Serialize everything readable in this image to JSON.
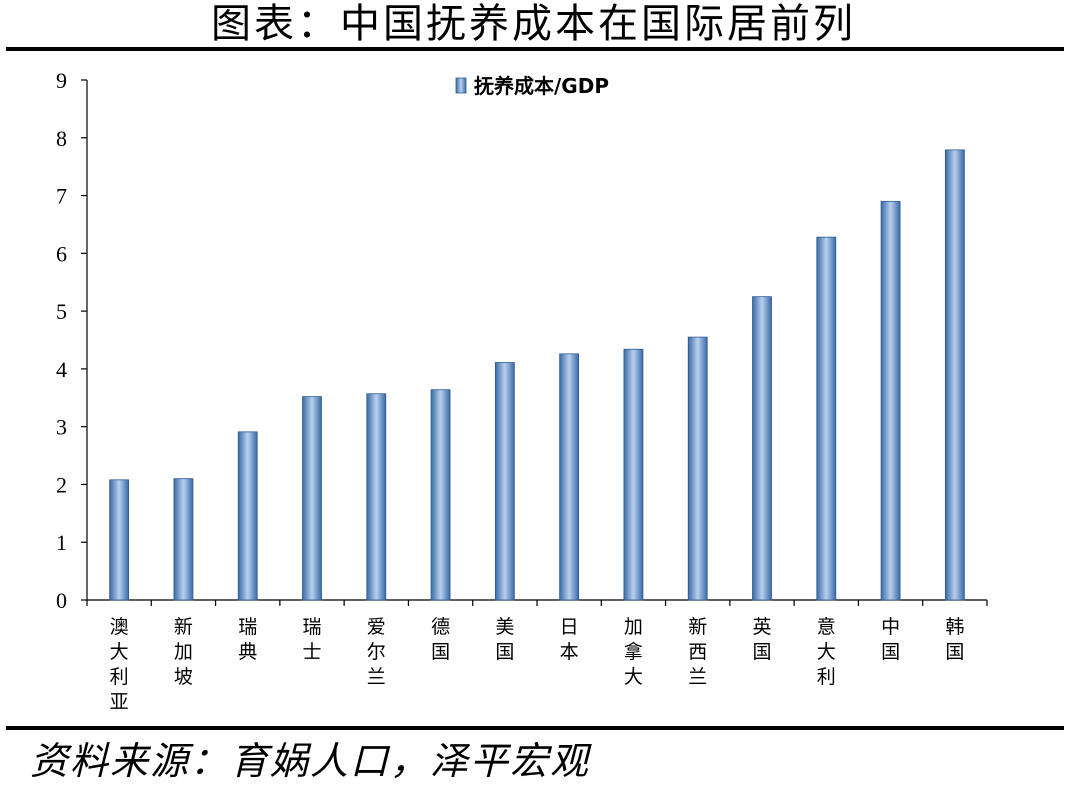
{
  "page": {
    "title": "图表：中国抚养成本在国际居前列",
    "source": "资料来源：育娲人口，泽平宏观"
  },
  "chart_data": {
    "type": "bar",
    "title": "",
    "xlabel": "",
    "ylabel": "",
    "ylim": [
      0,
      9
    ],
    "yticks": [
      "0",
      "1",
      "2",
      "3",
      "4",
      "5",
      "6",
      "7",
      "8",
      "9"
    ],
    "categories": [
      "澳大利亚",
      "新加坡",
      "瑞典",
      "瑞士",
      "爱尔兰",
      "德国",
      "美国",
      "日本",
      "加拿大",
      "新西兰",
      "英国",
      "意大利",
      "中国",
      "韩国"
    ],
    "series": [
      {
        "name": "抚养成本/GDP",
        "color": "#4f81bd",
        "values": [
          2.08,
          2.1,
          2.91,
          3.52,
          3.57,
          3.64,
          4.11,
          4.26,
          4.34,
          4.55,
          5.25,
          6.28,
          6.9,
          7.79
        ]
      }
    ],
    "legend": "top-center",
    "grid": false
  }
}
